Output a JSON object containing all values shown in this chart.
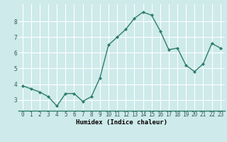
{
  "x": [
    0,
    1,
    2,
    3,
    4,
    5,
    6,
    7,
    8,
    9,
    10,
    11,
    12,
    13,
    14,
    15,
    16,
    17,
    18,
    19,
    20,
    21,
    22,
    23
  ],
  "y": [
    3.9,
    3.7,
    3.5,
    3.2,
    2.6,
    3.4,
    3.4,
    2.9,
    3.2,
    4.4,
    6.5,
    7.0,
    7.5,
    8.2,
    8.6,
    8.4,
    7.4,
    6.2,
    6.3,
    5.2,
    4.8,
    5.3,
    6.6,
    6.3
  ],
  "line_color": "#2e7d6e",
  "marker": "D",
  "marker_size": 2.0,
  "background_color": "#ceeaea",
  "grid_color": "#ffffff",
  "xlabel": "Humidex (Indice chaleur)",
  "xlim": [
    -0.5,
    23.5
  ],
  "ylim": [
    2.3,
    9.1
  ],
  "yticks": [
    3,
    4,
    5,
    6,
    7,
    8
  ],
  "xticks": [
    0,
    1,
    2,
    3,
    4,
    5,
    6,
    7,
    8,
    9,
    10,
    11,
    12,
    13,
    14,
    15,
    16,
    17,
    18,
    19,
    20,
    21,
    22,
    23
  ],
  "xtick_labels": [
    "0",
    "1",
    "2",
    "3",
    "4",
    "5",
    "6",
    "7",
    "8",
    "9",
    "10",
    "11",
    "12",
    "13",
    "14",
    "15",
    "16",
    "17",
    "18",
    "19",
    "20",
    "21",
    "22",
    "23"
  ],
  "line_width": 1.0,
  "tick_fontsize": 5.5,
  "xlabel_fontsize": 6.5
}
